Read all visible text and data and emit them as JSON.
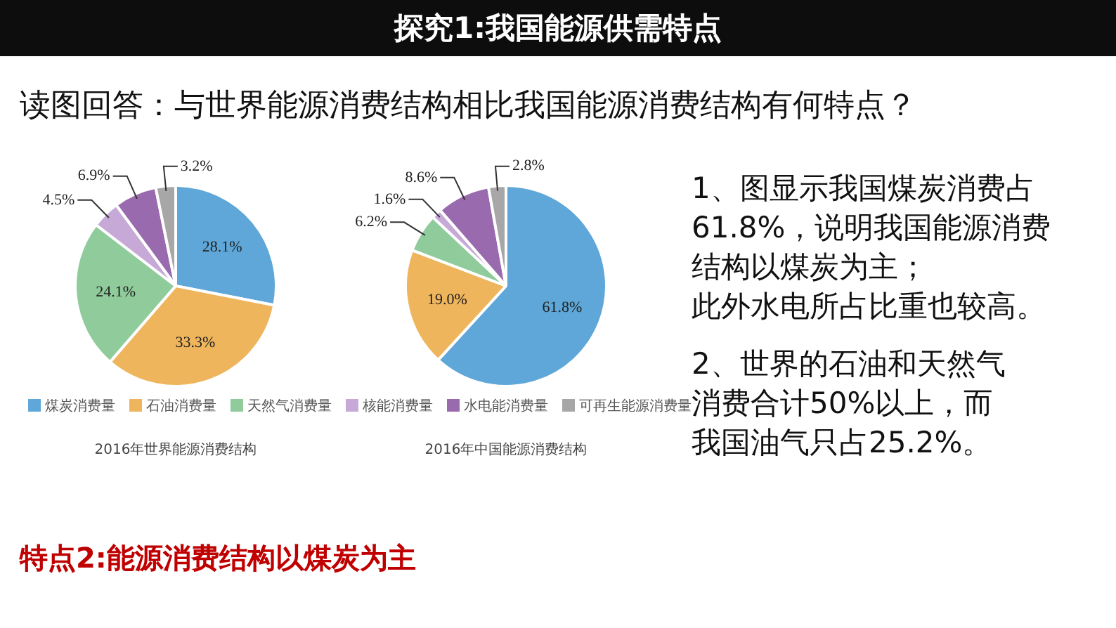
{
  "chart_data": [
    {
      "type": "pie",
      "title": "2016年世界能源消费结构",
      "categories": [
        "煤炭消费量",
        "石油消费量",
        "天然气消费量",
        "核能消费量",
        "水电能消费量",
        "可再生能源消费量"
      ],
      "values": [
        28.1,
        33.3,
        24.1,
        4.5,
        6.9,
        3.2
      ],
      "value_labels": [
        "28.1%",
        "33.3%",
        "24.1%",
        "4.5%",
        "6.9%",
        "3.2%"
      ],
      "colors": [
        "#5ea7d8",
        "#efb55c",
        "#8fcb9b",
        "#c6a9d6",
        "#9a6aae",
        "#a7a7a7"
      ],
      "legend": "bottom"
    },
    {
      "type": "pie",
      "title": "2016年中国能源消费结构",
      "categories": [
        null,
        null,
        null,
        null,
        null,
        null
      ],
      "values": [
        61.8,
        19.0,
        6.2,
        1.6,
        8.6,
        2.8
      ],
      "value_labels": [
        "61.8%",
        "19.0%",
        "6.2%",
        "1.6%",
        "8.6%",
        "2.8%"
      ],
      "colors": [
        "#5ea7d8",
        "#efb55c",
        "#8fcb9b",
        "#c6a9d6",
        "#9a6aae",
        "#a7a7a7"
      ]
    },
    {
      "type": "other",
      "title": "探究1:我国能源供需特点",
      "subtitle": "读图回答：与世界能源消费结构相比我国能源消费结构有何特点？",
      "annotations": [
        "1、图显示我国煤炭消费占61.8%，说明我国能源消费结构以煤炭为主；",
        "此外水电所占比重也较高。",
        "2、世界的石油和天然气消费合计50%以上，而我国油气只占25.2%。",
        "特点2:能源消费结构以煤炭为主"
      ]
    }
  ]
}
